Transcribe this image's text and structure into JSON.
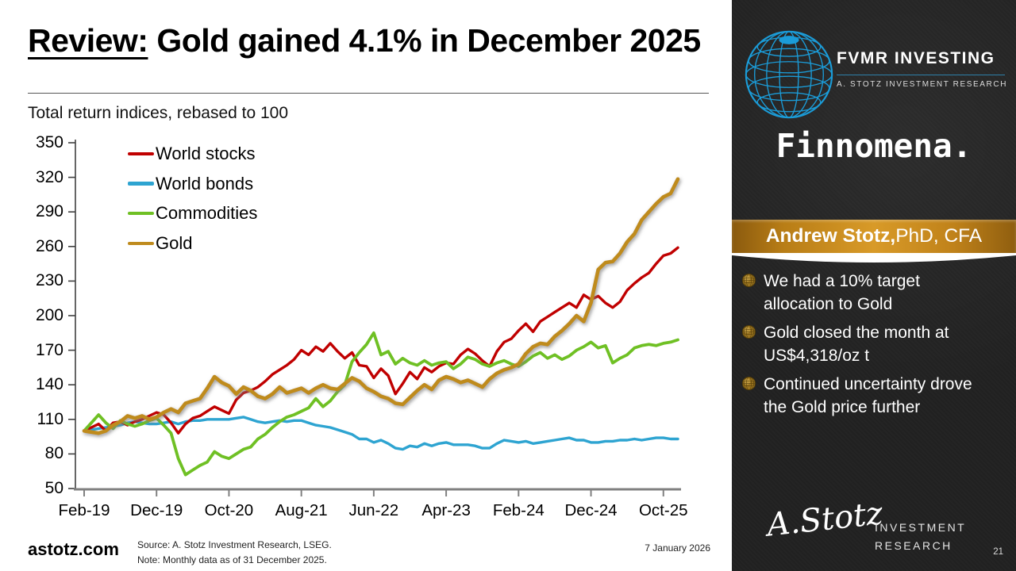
{
  "slide": {
    "title_prefix": "Review:",
    "title_rest": " Gold gained 4.1% in December 2025",
    "footer": {
      "site": "astotz.com",
      "source_line1": "Source: A. Stotz Investment Research, LSEG.",
      "source_line2": "Note: Monthly data as of 31 December 2025.",
      "date": "7 January 2026",
      "page_number": "21"
    }
  },
  "chart_data": {
    "type": "line",
    "title": "Total return indices, rebased to 100",
    "x_start_label": "Feb-19",
    "x_end_label": "Dec-25",
    "x_tick_labels": [
      "Feb-19",
      "Dec-19",
      "Oct-20",
      "Aug-21",
      "Jun-22",
      "Apr-23",
      "Feb-24",
      "Dec-24",
      "Oct-25"
    ],
    "x_tick_month_indices": [
      0,
      10,
      20,
      30,
      40,
      50,
      60,
      70,
      80
    ],
    "months_total": 83,
    "ylim": [
      50,
      350
    ],
    "y_tick_labels": [
      "350",
      "320",
      "290",
      "260",
      "230",
      "200",
      "170",
      "140",
      "110",
      "80",
      "50"
    ],
    "grid": false,
    "legend_position": "top-left-inside",
    "series": [
      {
        "name": "World bonds",
        "color": "#2EA4D1",
        "width": 3.4,
        "shadow": false,
        "legend_order": 2,
        "values": [
          100,
          101,
          102,
          103,
          104,
          105,
          107,
          108,
          107,
          106,
          106,
          107,
          108,
          106,
          108,
          109,
          109,
          110,
          110,
          110,
          110,
          111,
          112,
          110,
          108,
          107,
          108,
          109,
          108,
          109,
          109,
          107,
          105,
          104,
          103,
          101,
          99,
          97,
          93,
          93,
          90,
          92,
          89,
          85,
          84,
          87,
          86,
          89,
          87,
          89,
          90,
          88,
          88,
          88,
          87,
          85,
          85,
          89,
          92,
          91,
          90,
          91,
          89,
          90,
          91,
          92,
          93,
          94,
          92,
          92,
          90,
          90,
          91,
          91,
          92,
          92,
          93,
          92,
          93,
          94,
          94,
          93,
          93
        ]
      },
      {
        "name": "World stocks",
        "color": "#C00000",
        "width": 3.4,
        "shadow": false,
        "legend_order": 1,
        "values": [
          100,
          103,
          106,
          100,
          107,
          108,
          105,
          108,
          110,
          113,
          116,
          114,
          107,
          98,
          106,
          111,
          113,
          117,
          121,
          118,
          115,
          127,
          133,
          135,
          138,
          143,
          149,
          153,
          157,
          162,
          170,
          166,
          173,
          169,
          176,
          169,
          163,
          168,
          157,
          156,
          146,
          154,
          148,
          132,
          141,
          151,
          145,
          155,
          151,
          156,
          159,
          158,
          166,
          171,
          167,
          161,
          156,
          169,
          177,
          180,
          187,
          193,
          186,
          195,
          199,
          203,
          207,
          211,
          207,
          218,
          214,
          217,
          211,
          207,
          212,
          222,
          228,
          233,
          237,
          245,
          252,
          254,
          259
        ]
      },
      {
        "name": "Commodities",
        "color": "#6FC024",
        "width": 3.8,
        "shadow": false,
        "legend_order": 3,
        "values": [
          100,
          107,
          114,
          107,
          102,
          109,
          106,
          104,
          106,
          109,
          111,
          105,
          98,
          76,
          62,
          66,
          70,
          73,
          82,
          78,
          76,
          80,
          84,
          86,
          93,
          97,
          103,
          108,
          112,
          114,
          117,
          120,
          128,
          121,
          126,
          134,
          140,
          160,
          168,
          175,
          185,
          166,
          169,
          158,
          163,
          159,
          157,
          161,
          157,
          159,
          160,
          154,
          158,
          164,
          162,
          158,
          156,
          159,
          161,
          158,
          156,
          160,
          165,
          168,
          163,
          166,
          162,
          165,
          170,
          173,
          177,
          172,
          174,
          159,
          163,
          166,
          172,
          174,
          175,
          174,
          176,
          177,
          179
        ]
      },
      {
        "name": "Gold",
        "color": "#BF8B1E",
        "width": 4.6,
        "shadow": true,
        "legend_order": 4,
        "values": [
          100,
          99,
          98,
          100,
          105,
          108,
          113,
          111,
          113,
          110,
          112,
          116,
          119,
          116,
          124,
          126,
          128,
          137,
          147,
          142,
          139,
          132,
          138,
          135,
          130,
          128,
          132,
          138,
          133,
          135,
          137,
          133,
          137,
          140,
          137,
          136,
          141,
          146,
          143,
          137,
          134,
          130,
          128,
          124,
          123,
          129,
          135,
          140,
          136,
          144,
          147,
          145,
          142,
          144,
          141,
          138,
          145,
          150,
          153,
          155,
          158,
          167,
          173,
          176,
          175,
          182,
          187,
          193,
          200,
          195,
          211,
          240,
          246,
          247,
          254,
          264,
          271,
          283,
          290,
          297,
          303,
          306,
          318.5
        ]
      }
    ]
  },
  "sidebar": {
    "brand": {
      "name": "FVMR INVESTING",
      "subtitle": "A. STOTZ INVESTMENT RESEARCH",
      "globe_color": "#1B9CD8",
      "partner": "Finnomena."
    },
    "banner": {
      "name_bold": "Andrew Stotz,",
      "name_rest": " PhD, CFA",
      "bg_color": "#C78E1E"
    },
    "bullets": [
      {
        "text": "We had a 10% target allocation to Gold"
      },
      {
        "text": "Gold closed the month at US$4,318/oz t"
      },
      {
        "text": "Continued uncertainty drove the Gold price further"
      }
    ],
    "logo": {
      "signature": "A.Stotz",
      "line1": "INVESTMENT",
      "line2": "RESEARCH"
    }
  }
}
